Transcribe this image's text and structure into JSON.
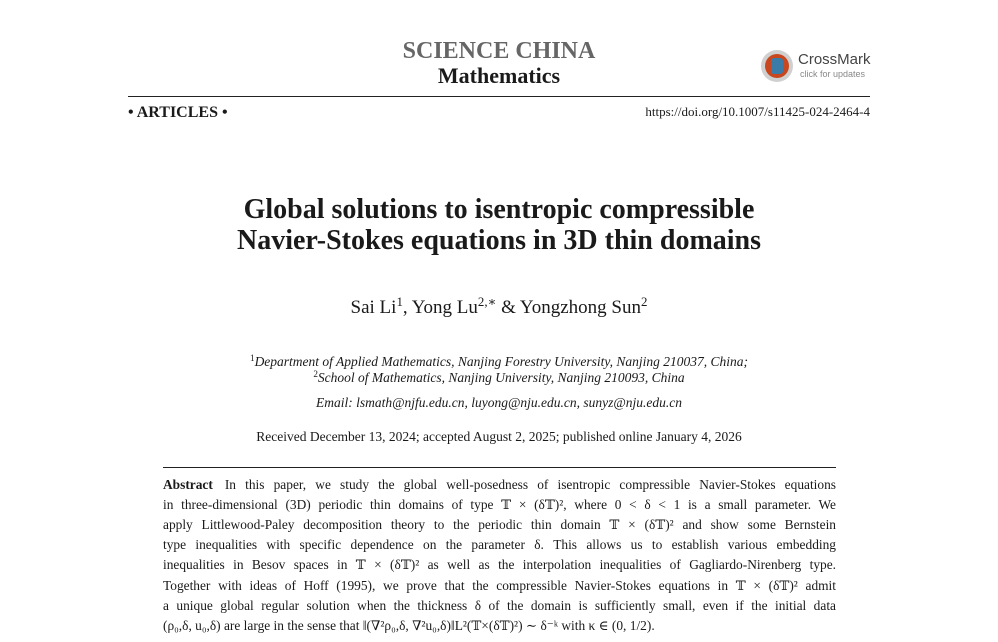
{
  "header": {
    "journal": "SCIENCE CHINA",
    "subject": "Mathematics",
    "crossmark": {
      "name": "CrossMark",
      "note": "click for updates"
    },
    "section": "• ARTICLES •",
    "doi": "https://doi.org/10.1007/s11425-024-2464-4"
  },
  "title": {
    "lines": [
      "Global solutions to isentropic compressible",
      "Navier-Stokes equations in 3D thin domains"
    ]
  },
  "authors": {
    "people": [
      {
        "name": "Sai Li",
        "mark": "1"
      },
      {
        "name": "Yong Lu",
        "mark": "2,∗"
      },
      {
        "name": "Yongzhong Sun",
        "mark": "2"
      }
    ],
    "separators": [
      ", ",
      " & "
    ]
  },
  "affiliations": [
    {
      "mark": "1",
      "text": "Department of Applied Mathematics, Nanjing Forestry University, Nanjing 210037, China;"
    },
    {
      "mark": "2",
      "text": "School of Mathematics, Nanjing University, Nanjing 210093, China"
    }
  ],
  "email": "Email: lsmath@njfu.edu.cn, luyong@nju.edu.cn, sunyz@nju.edu.cn",
  "dates": "Received December 13, 2024; accepted August 2, 2025; published online January 4, 2026",
  "abstract": {
    "label": "Abstract",
    "lines": [
      "In this paper, we study the global well-posedness of isentropic compressible Navier-Stokes equations",
      "in three-dimensional (3D) periodic thin domains of type 𝕋 × (δ𝕋)², where 0 < δ < 1 is a small parameter. We",
      "apply Littlewood-Paley decomposition theory to the periodic thin domain 𝕋 × (δ𝕋)² and show some Bernstein",
      "type inequalities with specific dependence on the parameter δ. This allows us to establish various embedding",
      "inequalities in Besov spaces in 𝕋 × (δ𝕋)² as well as the interpolation inequalities of Gagliardo-Nirenberg type.",
      "Together with ideas of Hoff (1995), we prove that the compressible Navier-Stokes equations in 𝕋 × (δ𝕋)² admit",
      "a unique global regular solution when the thickness δ of the domain is sufficiently small, even if the initial data",
      "(ρ₀,δ, u₀,δ) are large in the sense that ‖(∇²ρ₀,δ, ∇²u₀,δ)‖L²(𝕋×(δ𝕋)²) ∼ δ⁻ᵏ with κ ∈ (0, 1/2)."
    ]
  }
}
